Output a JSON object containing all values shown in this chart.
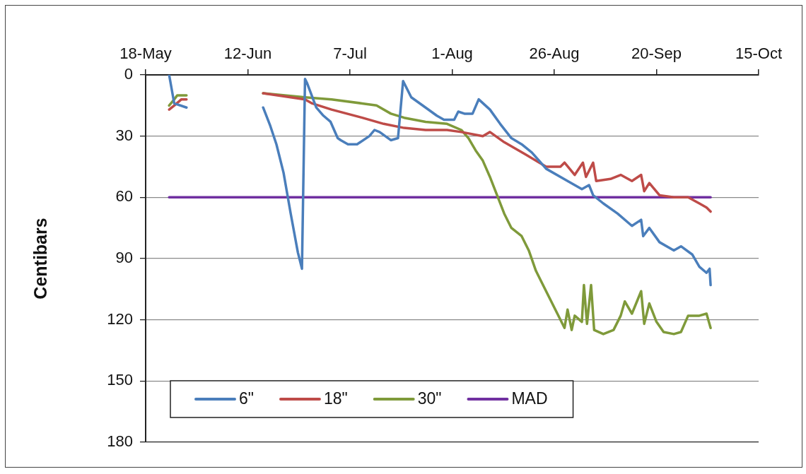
{
  "chart_data": {
    "type": "line",
    "ylabel": "Centibars",
    "xlim": [
      "--05-18",
      "--10-15"
    ],
    "xticks": [
      {
        "value": "--05-18",
        "label": "18-May"
      },
      {
        "value": "--06-12",
        "label": "12-Jun"
      },
      {
        "value": "--07-07",
        "label": "7-Jul"
      },
      {
        "value": "--08-01",
        "label": "1-Aug"
      },
      {
        "value": "--08-26",
        "label": "26-Aug"
      },
      {
        "value": "--09-20",
        "label": "20-Sep"
      },
      {
        "value": "--10-15",
        "label": "15-Oct"
      }
    ],
    "ylim": [
      180,
      0
    ],
    "yticks": [
      0,
      30,
      60,
      90,
      120,
      150,
      180
    ],
    "grid": "y",
    "legend": "bottom left",
    "marker": "none",
    "line_style": "solid",
    "series": [
      {
        "name": "6\"",
        "color": "#4a7ebb",
        "x": [
          "--05-23T18:00",
          "--05-25T00:00",
          "--05-28T00:00",
          "--06-05T00:00",
          "--06-15T18:00",
          "--06-17T12:00",
          "--06-19T00:00",
          "--06-20T18:00",
          "--06-22T12:00",
          "--06-24T06:00",
          "--06-25T06:00",
          "--06-26T00:00",
          "--06-26T12:00",
          "--06-28T18:00",
          "--06-30T12:00",
          "--07-02T06:00",
          "--07-04T00:00",
          "--07-04T18:00",
          "--07-06T12:00",
          "--07-08T18:00",
          "--07-11T18:00",
          "--07-13T00:00",
          "--07-14T06:00",
          "--07-17T00:00",
          "--07-18T18:00",
          "--07-20T00:00",
          "--07-22T00:00",
          "--07-25T12:00",
          "--07-28T06:00",
          "--07-30T00:00",
          "--08-01T12:00",
          "--08-02T12:00",
          "--08-04T00:00",
          "--08-06T00:00",
          "--08-07T12:00",
          "--08-10T06:00",
          "--08-12T18:00",
          "--08-15T12:00",
          "--08-18T00:00",
          "--08-20T12:00",
          "--08-24T00:00",
          "--08-29T06:00",
          "--09-01T18:00",
          "--09-03T12:00",
          "--09-04T12:00",
          "--09-07T00:00",
          "--09-10T12:00",
          "--09-14T00:00",
          "--09-16T06:00",
          "--09-16T18:00",
          "--09-18T06:00",
          "--09-20T18:00",
          "--09-24T06:00",
          "--09-26T00:00",
          "--09-28T18:00",
          "--09-30T12:00",
          "--10-02T06:00",
          "--10-03T00:00",
          "--10-03T06:00"
        ],
        "values": [
          0,
          14,
          16,
          null,
          16,
          25,
          34,
          48,
          68,
          87,
          95,
          2,
          4,
          16,
          20,
          23,
          31,
          32,
          34,
          34,
          30,
          27,
          28,
          32,
          31,
          3,
          11,
          16,
          20,
          22,
          22,
          18,
          19,
          19,
          12,
          17,
          24,
          31,
          34,
          38,
          46,
          52,
          56,
          54,
          59,
          63,
          68,
          74,
          71,
          79,
          75,
          82,
          86,
          84,
          88,
          94,
          97,
          95,
          103
        ]
      },
      {
        "name": "18\"",
        "color": "#be4b48",
        "x": [
          "--05-23T18:00",
          "--05-25T00:00",
          "--05-26T18:00",
          "--05-28T00:00",
          "--06-05T00:00",
          "--06-15T18:00",
          "--06-26T00:00",
          "--06-27T18:00",
          "--07-02T12:00",
          "--07-10T00:00",
          "--07-15T06:00",
          "--07-20T06:00",
          "--07-25T12:00",
          "--07-30T18:00",
          "--08-03T06:00",
          "--08-08T12:00",
          "--08-10T06:00",
          "--08-13T18:00",
          "--08-19T00:00",
          "--08-24T00:00",
          "--08-27T12:00",
          "--08-28T12:00",
          "--08-31T00:00",
          "--09-02T00:00",
          "--09-02T18:00",
          "--09-04T12:00",
          "--09-05T06:00",
          "--09-08T18:00",
          "--09-11T06:00",
          "--09-14T00:00",
          "--09-16T06:00",
          "--09-17T00:00",
          "--09-18T06:00",
          "--09-20T18:00",
          "--09-24T06:00",
          "--09-27T18:00",
          "--09-30T12:00",
          "--10-02T06:00",
          "--10-03T06:00"
        ],
        "values": [
          17,
          15,
          12,
          12,
          null,
          9,
          12,
          14,
          17,
          21,
          24,
          26,
          27,
          27,
          28,
          30,
          28,
          33,
          39,
          45,
          45,
          43,
          49,
          43,
          50,
          43,
          52,
          51,
          49,
          52,
          49,
          57,
          53,
          59,
          60,
          60,
          63,
          65,
          67
        ]
      },
      {
        "name": "30\"",
        "color": "#7f9a3a",
        "x": [
          "--05-23T18:00",
          "--05-25T00:00",
          "--05-25T18:00",
          "--05-28T00:00",
          "--06-05T00:00",
          "--06-15T18:00",
          "--06-26T00:00",
          "--07-02T12:00",
          "--07-10T00:00",
          "--07-13T12:00",
          "--07-17T00:00",
          "--07-20T06:00",
          "--07-25T12:00",
          "--07-30T18:00",
          "--08-03T06:00",
          "--08-05T00:00",
          "--08-06T18:00",
          "--08-08T12:00",
          "--08-10T06:00",
          "--08-12T00:00",
          "--08-13T18:00",
          "--08-15T12:00",
          "--08-18T00:00",
          "--08-19T18:00",
          "--08-21T12:00",
          "--08-24T00:00",
          "--08-26T18:00",
          "--08-28T12:00",
          "--08-29T06:00",
          "--08-30T06:00",
          "--08-31T00:00",
          "--09-01T18:00",
          "--09-02T06:00",
          "--09-03T00:00",
          "--09-04T00:00",
          "--09-04T18:00",
          "--09-07T00:00",
          "--09-09T12:00",
          "--09-11T06:00",
          "--09-12T06:00",
          "--09-14T00:00",
          "--09-16T06:00",
          "--09-17T00:00",
          "--09-18T06:00",
          "--09-20T00:00",
          "--09-21T18:00",
          "--09-24T06:00",
          "--09-26T00:00",
          "--09-27T18:00",
          "--09-30T12:00",
          "--10-02T06:00",
          "--10-03T06:00"
        ],
        "values": [
          15,
          12,
          10,
          10,
          null,
          9,
          11,
          12,
          14,
          15,
          19,
          21,
          23,
          24,
          27,
          31,
          37,
          42,
          50,
          59,
          68,
          75,
          79,
          86,
          96,
          106,
          117,
          124,
          115,
          125,
          118,
          121,
          103,
          122,
          103,
          125,
          127,
          125,
          118,
          111,
          117,
          106,
          122,
          112,
          121,
          126,
          127,
          126,
          118,
          118,
          117,
          124
        ]
      },
      {
        "name": "MAD",
        "color": "#7030a0",
        "x": [
          "--05-23T18:00",
          "--10-03T06:00"
        ],
        "values": [
          60,
          60
        ]
      }
    ]
  }
}
